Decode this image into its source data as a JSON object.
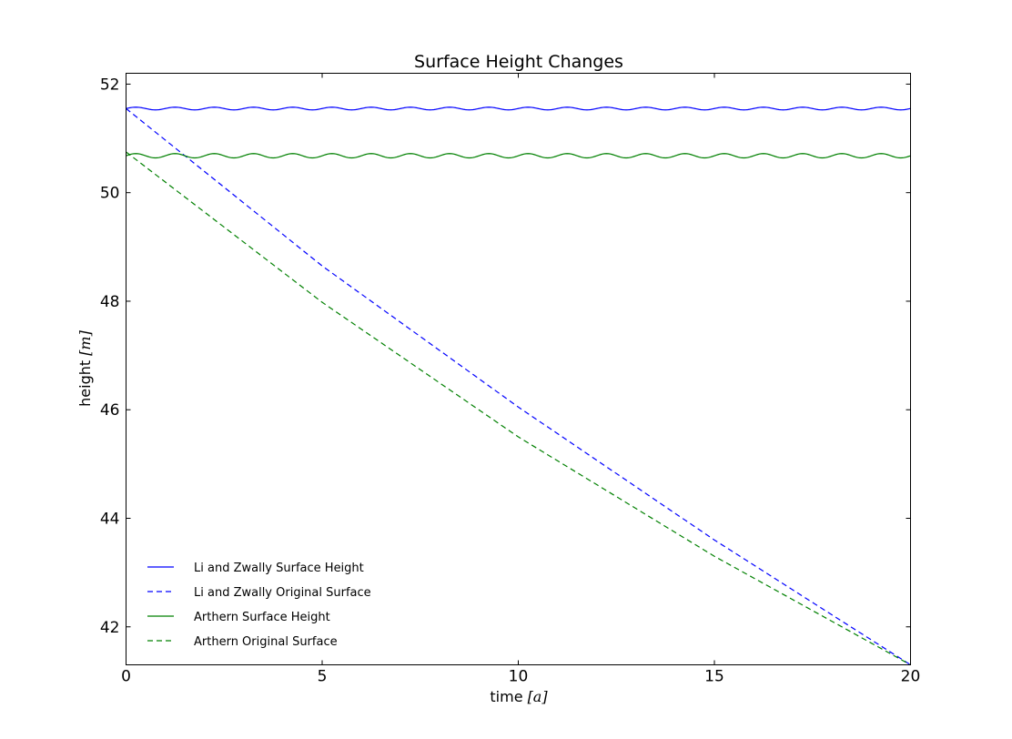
{
  "chart_data": {
    "type": "line",
    "title": "Surface Height Changes",
    "xlabel": "time",
    "xlabel_unit": "[a]",
    "ylabel": "height",
    "ylabel_unit": "[m]",
    "xlim": [
      0,
      20
    ],
    "ylim": [
      41.3,
      52.2
    ],
    "xticks": [
      0,
      5,
      10,
      15,
      20
    ],
    "yticks": [
      42,
      44,
      46,
      48,
      50,
      52
    ],
    "grid": false,
    "legend_position": "lower-left",
    "series": [
      {
        "name": "Li and Zwally Surface Height",
        "color": "#0000ff",
        "style": "solid",
        "shape": "oscillating",
        "mean": 51.55,
        "amplitude": 0.025,
        "cycles": 20,
        "x": [
          0,
          20
        ]
      },
      {
        "name": "Li and Zwally Original Surface",
        "color": "#0000ff",
        "style": "dashed",
        "x": [
          0,
          5,
          10,
          15,
          20
        ],
        "y": [
          51.55,
          48.65,
          46.05,
          43.6,
          41.3
        ]
      },
      {
        "name": "Arthern Surface Height",
        "color": "#008000",
        "style": "solid",
        "shape": "oscillating",
        "mean": 50.68,
        "amplitude": 0.04,
        "cycles": 20,
        "x": [
          0,
          20
        ]
      },
      {
        "name": "Arthern Original Surface",
        "color": "#008000",
        "style": "dashed",
        "x": [
          0,
          5,
          10,
          15,
          20
        ],
        "y": [
          50.75,
          47.98,
          45.5,
          43.3,
          41.3
        ]
      }
    ]
  }
}
